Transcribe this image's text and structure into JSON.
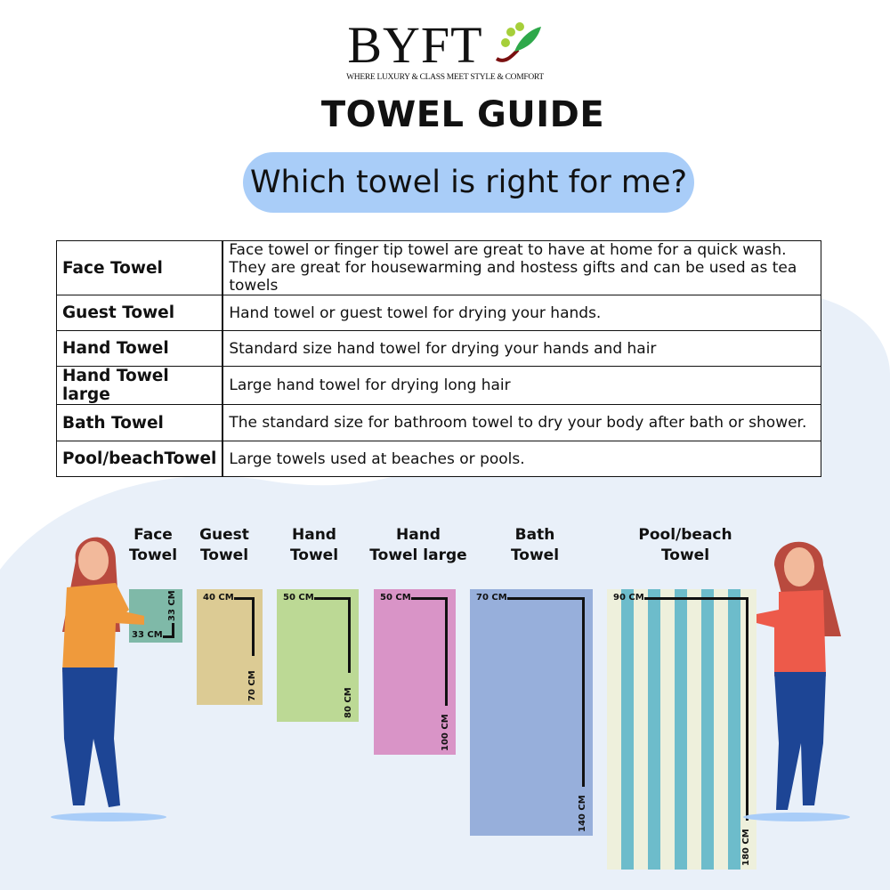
{
  "brand": {
    "name": "BYFT",
    "tagline": "WHERE LUXURY & CLASS MEET STYLE & COMFORT"
  },
  "title": "TOWEL GUIDE",
  "question": "Which towel is right for me?",
  "table": [
    {
      "name": "Face Towel",
      "desc": [
        "Face towel or finger tip towel are great to have at home for a quick wash.",
        "They are great for housewarming and hostess gifts and can be used as tea towels"
      ]
    },
    {
      "name": "Guest Towel",
      "desc": [
        "Hand towel or guest towel for drying your hands."
      ]
    },
    {
      "name": "Hand Towel",
      "desc": [
        "Standard size hand towel for drying your hands and hair"
      ]
    },
    {
      "name": "Hand Towel large",
      "desc": [
        "Large hand towel for drying long hair"
      ]
    },
    {
      "name": "Bath Towel",
      "desc": [
        "The standard size for bathroom towel to dry your body after bath or shower."
      ]
    },
    {
      "name": "Pool/beachTowel",
      "desc": [
        "Large towels used at beaches or pools."
      ]
    }
  ],
  "towels": [
    {
      "label": [
        "Face",
        "Towel"
      ],
      "width": "33 CM",
      "length": "33 CM",
      "color": "#7fb9a8"
    },
    {
      "label": [
        "Guest",
        "Towel"
      ],
      "width": "40 CM",
      "length": "70 CM",
      "color": "#dccb94"
    },
    {
      "label": [
        "Hand",
        "Towel"
      ],
      "width": "50 CM",
      "length": "80 CM",
      "color": "#bcd995"
    },
    {
      "label": [
        "Hand",
        "Towel large"
      ],
      "width": "50 CM",
      "length": "100 CM",
      "color": "#d994c7"
    },
    {
      "label": [
        "Bath",
        "Towel"
      ],
      "width": "70 CM",
      "length": "140 CM",
      "color": "#97afdb"
    },
    {
      "label": [
        "Pool/beach",
        "Towel"
      ],
      "width": "90 CM",
      "length": "180 CM",
      "color": "#eef0dc",
      "stripe_color": "#6dbccb"
    }
  ],
  "colors": {
    "pill": "#a9cdf8",
    "background_blob": "#e9f0f9"
  }
}
